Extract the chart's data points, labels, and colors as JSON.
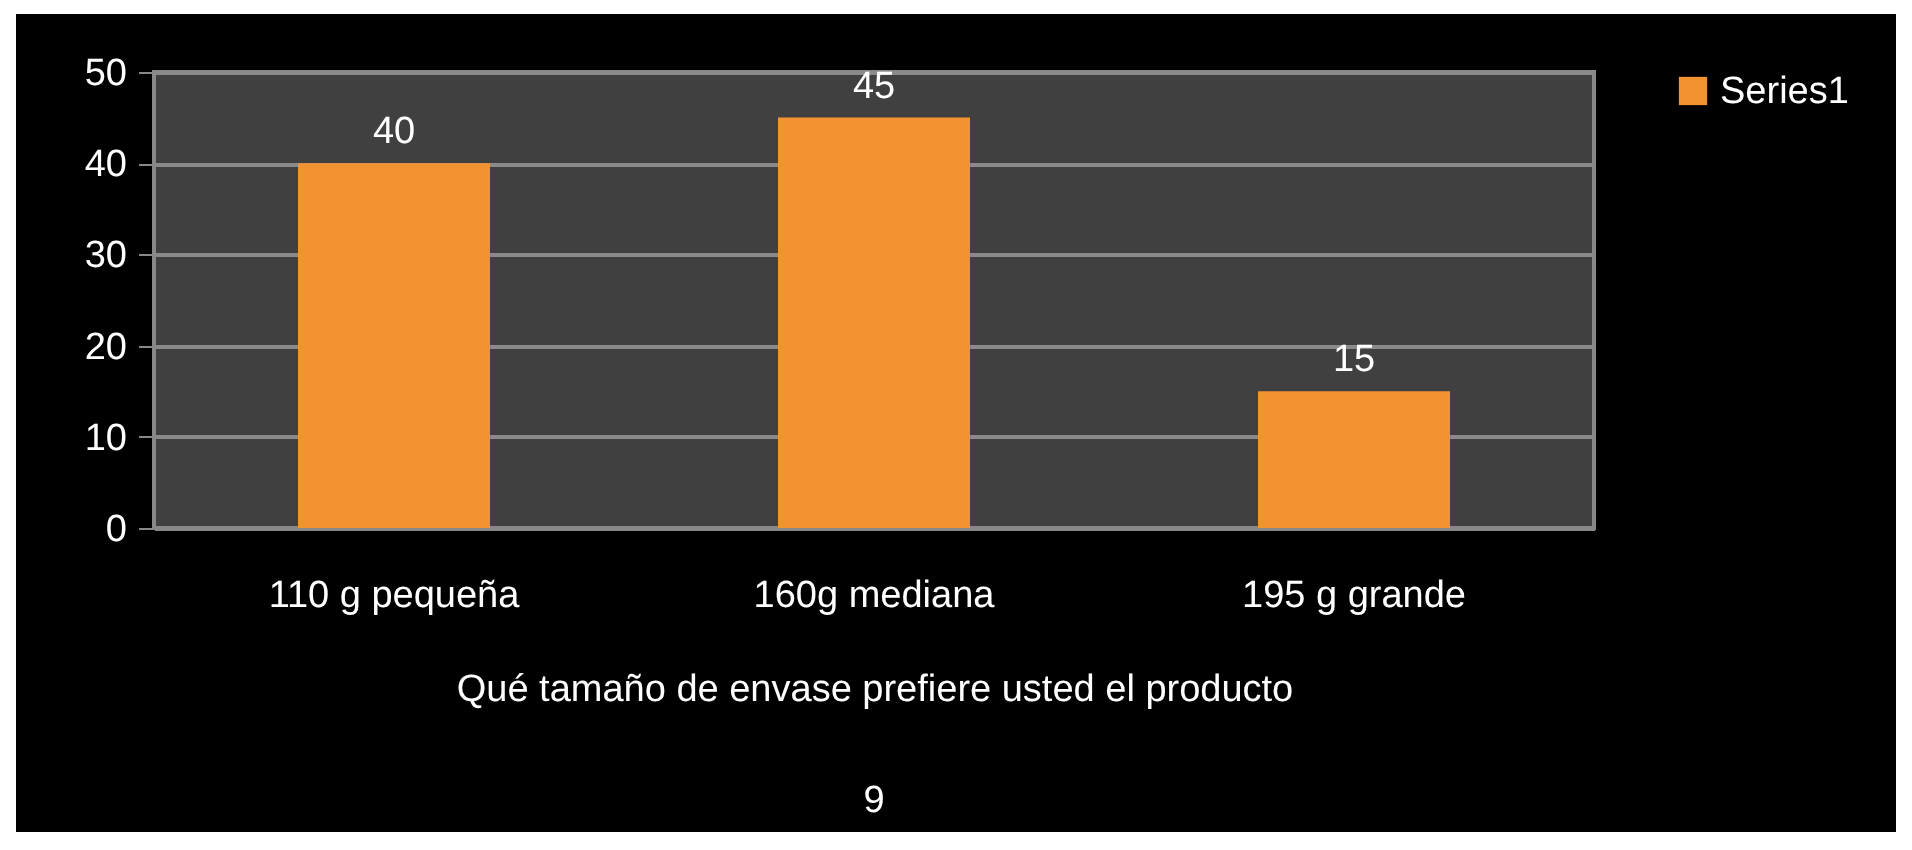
{
  "chart_data": {
    "type": "bar",
    "categories": [
      "110 g pequeña",
      "160g mediana",
      "195 g grande"
    ],
    "series": [
      {
        "name": "Series1",
        "color": "#f39230",
        "values": [
          40,
          45,
          15
        ]
      }
    ],
    "xlabel": "Qué tamaño de envase prefiere usted el producto",
    "annotations": [
      "9"
    ],
    "ylim": [
      0,
      50
    ],
    "yticks": [
      0,
      10,
      20,
      30,
      40,
      50
    ],
    "grid": "y",
    "legend": "right",
    "data_labels": true
  }
}
